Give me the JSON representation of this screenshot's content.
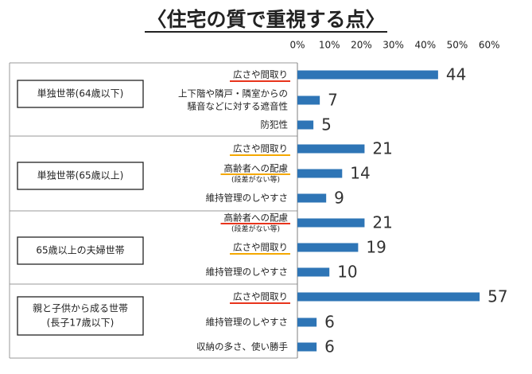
{
  "chart_data": {
    "type": "bar",
    "orientation": "horizontal",
    "title": "〈住宅の質で重視する点〉",
    "xlim": [
      0,
      60
    ],
    "xticks": [
      "0%",
      "10%",
      "20%",
      "30%",
      "40%",
      "50%",
      "60%"
    ],
    "bar_color": "#2e75b6",
    "underline_colors": {
      "red": "#e8341c",
      "orange": "#f5a800"
    },
    "groups": [
      {
        "label": "単独世帯(64歳以下)",
        "items": [
          {
            "label": "広さや間取り",
            "value": 44,
            "value_label": "44",
            "underline": "red"
          },
          {
            "label": "上下階や隣戸・隣室からの",
            "label2": "騒音などに対する遮音性",
            "value": 7,
            "value_label": "7"
          },
          {
            "label": "防犯性",
            "value": 5,
            "value_label": "5"
          }
        ]
      },
      {
        "label": "単独世帯(65歳以上)",
        "items": [
          {
            "label": "広さや間取り",
            "value": 21,
            "value_label": "21",
            "underline": "orange"
          },
          {
            "label": "高齢者への配慮",
            "sub": "(段差がない等)",
            "value": 14,
            "value_label": "14",
            "underline": "orange"
          },
          {
            "label": "維持管理のしやすさ",
            "value": 9,
            "value_label": "9"
          }
        ]
      },
      {
        "label": "65歳以上の夫婦世帯",
        "items": [
          {
            "label": "高齢者への配慮",
            "sub": "(段差がない等)",
            "value": 21,
            "value_label": "21",
            "underline": "red"
          },
          {
            "label": "広さや間取り",
            "value": 19,
            "value_label": "19",
            "underline": "orange"
          },
          {
            "label": "維持管理のしやすさ",
            "value": 10,
            "value_label": "10"
          }
        ]
      },
      {
        "label": "親と子供から成る世帯",
        "label2": "(長子17歳以下)",
        "items": [
          {
            "label": "広さや間取り",
            "value": 57,
            "value_label": "57",
            "underline": "red"
          },
          {
            "label": "維持管理のしやすさ",
            "value": 6,
            "value_label": "6"
          },
          {
            "label": "収納の多さ、使い勝手",
            "value": 6,
            "value_label": "6"
          }
        ]
      }
    ]
  }
}
